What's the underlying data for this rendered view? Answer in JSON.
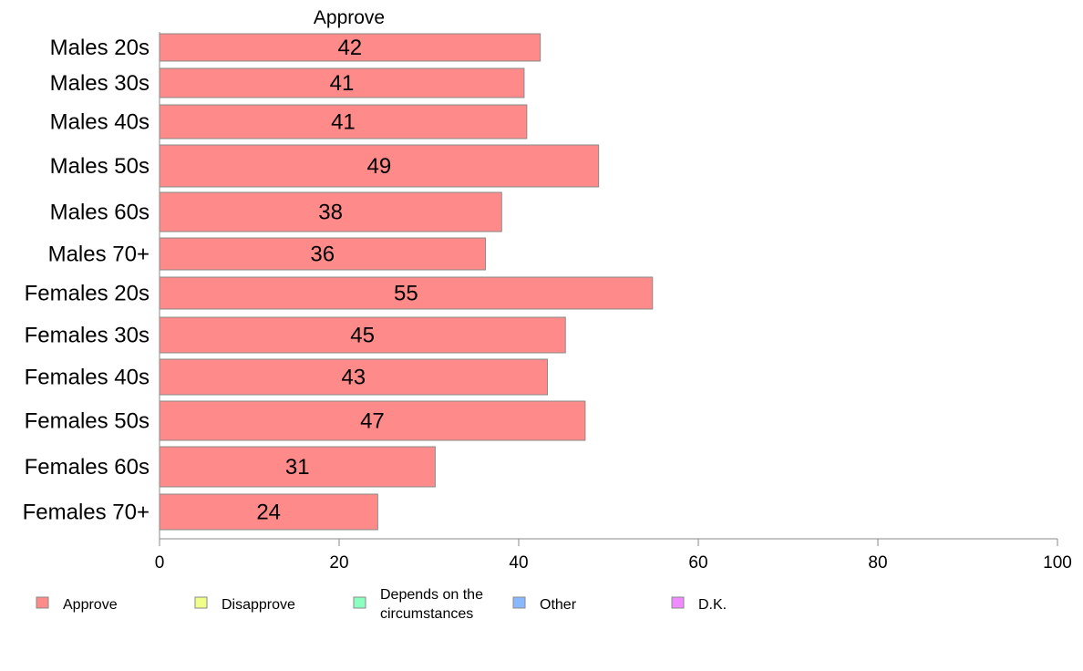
{
  "chart_data": {
    "type": "bar",
    "orientation": "horizontal",
    "series": [
      {
        "name": "Approve",
        "color": "#ff8a8a",
        "values": [
          42,
          41,
          41,
          49,
          38,
          36,
          55,
          45,
          43,
          47,
          31,
          24
        ]
      }
    ],
    "categories": [
      "Males 20s",
      "Males 30s",
      "Males 40s",
      "Males 50s",
      "Males 60s",
      "Males 70+",
      "Females 20s",
      "Females 30s",
      "Females 40s",
      "Females 50s",
      "Females 60s",
      "Females 70+"
    ],
    "bar_values": [
      42.4,
      40.6,
      40.9,
      48.9,
      38.1,
      36.3,
      54.9,
      45.2,
      43.2,
      47.4,
      30.7,
      24.3
    ],
    "column_label": "Approve",
    "xlim": [
      0,
      100
    ],
    "x_ticks": [
      0,
      20,
      40,
      60,
      80,
      100
    ],
    "legend": {
      "position": "bottom",
      "items": [
        {
          "label": "Approve",
          "color": "#ff8a8a"
        },
        {
          "label": "Disapprove",
          "color": "#f0ff8a"
        },
        {
          "label": "Depends on the circumstances",
          "lines": [
            "Depends on the",
            "circumstances"
          ],
          "color": "#8affc0"
        },
        {
          "label": "Other",
          "color": "#8ab8ff"
        },
        {
          "label": "D.K.",
          "color": "#f08aff"
        }
      ]
    },
    "grid": false
  }
}
